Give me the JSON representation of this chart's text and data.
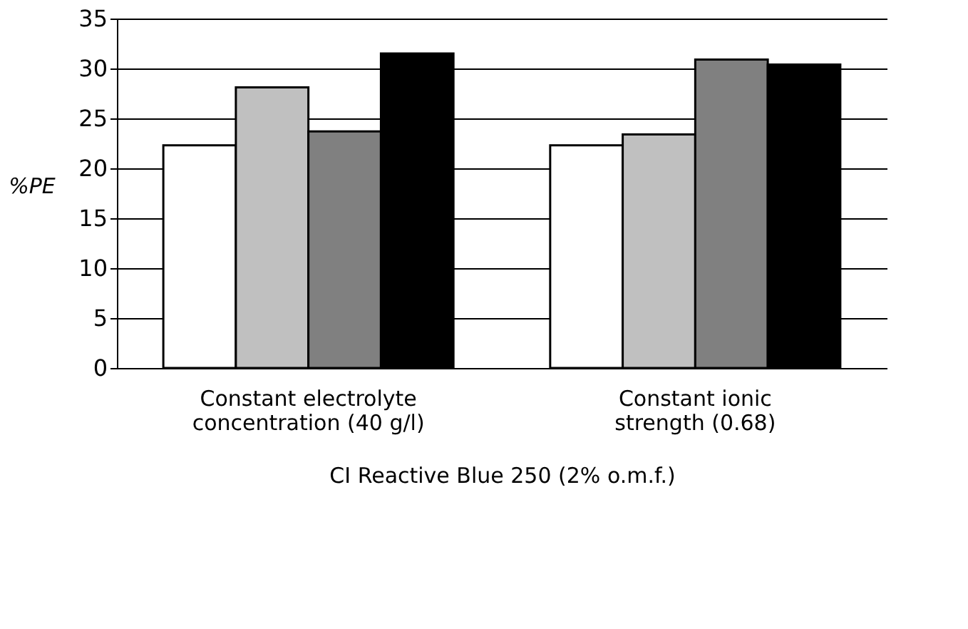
{
  "chart_data": {
    "type": "bar",
    "categories": [
      "Constant electrolyte concentration (40 g/l)",
      "Constant ionic strength (0.68)"
    ],
    "series": [
      {
        "color": "#ffffff",
        "values": [
          22.3,
          22.3
        ]
      },
      {
        "color": "#c0c0c0",
        "values": [
          28.1,
          23.4
        ]
      },
      {
        "color": "#808080",
        "values": [
          23.7,
          30.9
        ]
      },
      {
        "color": "#000000",
        "values": [
          31.5,
          30.4
        ]
      }
    ],
    "xlabel": "CI Reactive Blue 250 (2% o.m.f.)",
    "ylabel": "%PE",
    "ylim": [
      0,
      35
    ],
    "yticks": [
      0,
      5,
      10,
      15,
      20,
      25,
      30,
      35
    ],
    "grid": "y"
  }
}
